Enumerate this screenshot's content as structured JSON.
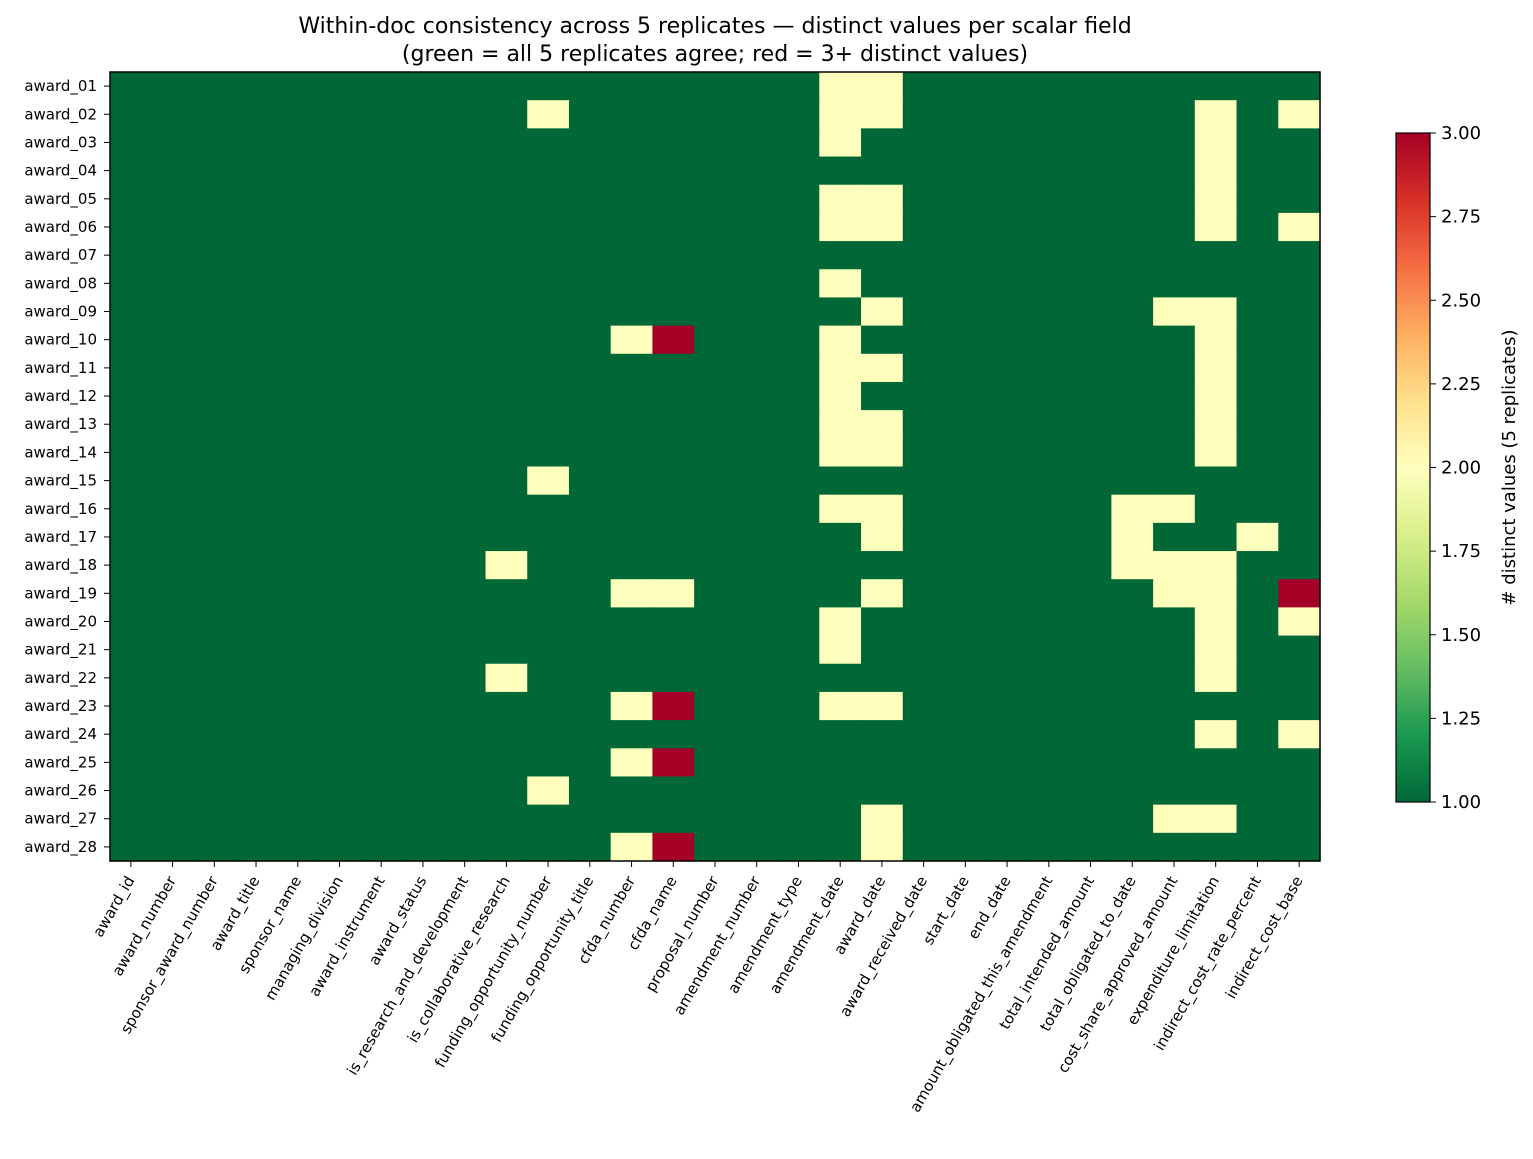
{
  "chart_data": {
    "type": "heatmap",
    "title": "Within-doc consistency across 5 replicates — distinct values per scalar field",
    "subtitle": "(green = all 5 replicates agree; red = 3+ distinct values)",
    "colorbar_label": "# distinct values (5 replicates)",
    "value_range": [
      1.0,
      3.0
    ],
    "colormap": "RdYlGn_r",
    "colorbar_ticks": [
      "1.00",
      "1.25",
      "1.50",
      "1.75",
      "2.00",
      "2.25",
      "2.50",
      "2.75",
      "3.00"
    ],
    "rows": [
      "award_01",
      "award_02",
      "award_03",
      "award_04",
      "award_05",
      "award_06",
      "award_07",
      "award_08",
      "award_09",
      "award_10",
      "award_11",
      "award_12",
      "award_13",
      "award_14",
      "award_15",
      "award_16",
      "award_17",
      "award_18",
      "award_19",
      "award_20",
      "award_21",
      "award_22",
      "award_23",
      "award_24",
      "award_25",
      "award_26",
      "award_27",
      "award_28"
    ],
    "columns": [
      "award_id",
      "award_number",
      "sponsor_award_number",
      "award_title",
      "sponsor_name",
      "managing_division",
      "award_instrument",
      "award_status",
      "is_research_and_development",
      "is_collaborative_research",
      "funding_opportunity_number",
      "funding_opportunity_title",
      "cfda_number",
      "cfda_name",
      "proposal_number",
      "amendment_number",
      "amendment_type",
      "amendment_date",
      "award_date",
      "award_received_date",
      "start_date",
      "end_date",
      "amount_obligated_this_amendment",
      "total_intended_amount",
      "total_obligated_to_date",
      "cost_share_approved_amount",
      "expenditure_limitation",
      "indirect_cost_rate_percent",
      "indirect_cost_base"
    ],
    "values": [
      [
        1,
        1,
        1,
        1,
        1,
        1,
        1,
        1,
        1,
        1,
        1,
        1,
        1,
        1,
        1,
        1,
        1,
        2,
        2,
        1,
        1,
        1,
        1,
        1,
        1,
        1,
        1,
        1,
        1
      ],
      [
        1,
        1,
        1,
        1,
        1,
        1,
        1,
        1,
        1,
        1,
        2,
        1,
        1,
        1,
        1,
        1,
        1,
        2,
        2,
        1,
        1,
        1,
        1,
        1,
        1,
        1,
        2,
        1,
        2
      ],
      [
        1,
        1,
        1,
        1,
        1,
        1,
        1,
        1,
        1,
        1,
        1,
        1,
        1,
        1,
        1,
        1,
        1,
        2,
        1,
        1,
        1,
        1,
        1,
        1,
        1,
        1,
        2,
        1,
        1
      ],
      [
        1,
        1,
        1,
        1,
        1,
        1,
        1,
        1,
        1,
        1,
        1,
        1,
        1,
        1,
        1,
        1,
        1,
        1,
        1,
        1,
        1,
        1,
        1,
        1,
        1,
        1,
        2,
        1,
        1
      ],
      [
        1,
        1,
        1,
        1,
        1,
        1,
        1,
        1,
        1,
        1,
        1,
        1,
        1,
        1,
        1,
        1,
        1,
        2,
        2,
        1,
        1,
        1,
        1,
        1,
        1,
        1,
        2,
        1,
        1
      ],
      [
        1,
        1,
        1,
        1,
        1,
        1,
        1,
        1,
        1,
        1,
        1,
        1,
        1,
        1,
        1,
        1,
        1,
        2,
        2,
        1,
        1,
        1,
        1,
        1,
        1,
        1,
        2,
        1,
        2
      ],
      [
        1,
        1,
        1,
        1,
        1,
        1,
        1,
        1,
        1,
        1,
        1,
        1,
        1,
        1,
        1,
        1,
        1,
        1,
        1,
        1,
        1,
        1,
        1,
        1,
        1,
        1,
        1,
        1,
        1
      ],
      [
        1,
        1,
        1,
        1,
        1,
        1,
        1,
        1,
        1,
        1,
        1,
        1,
        1,
        1,
        1,
        1,
        1,
        2,
        1,
        1,
        1,
        1,
        1,
        1,
        1,
        1,
        1,
        1,
        1
      ],
      [
        1,
        1,
        1,
        1,
        1,
        1,
        1,
        1,
        1,
        1,
        1,
        1,
        1,
        1,
        1,
        1,
        1,
        1,
        2,
        1,
        1,
        1,
        1,
        1,
        1,
        2,
        2,
        1,
        1
      ],
      [
        1,
        1,
        1,
        1,
        1,
        1,
        1,
        1,
        1,
        1,
        1,
        1,
        2,
        3,
        1,
        1,
        1,
        2,
        1,
        1,
        1,
        1,
        1,
        1,
        1,
        1,
        2,
        1,
        1
      ],
      [
        1,
        1,
        1,
        1,
        1,
        1,
        1,
        1,
        1,
        1,
        1,
        1,
        1,
        1,
        1,
        1,
        1,
        2,
        2,
        1,
        1,
        1,
        1,
        1,
        1,
        1,
        2,
        1,
        1
      ],
      [
        1,
        1,
        1,
        1,
        1,
        1,
        1,
        1,
        1,
        1,
        1,
        1,
        1,
        1,
        1,
        1,
        1,
        2,
        1,
        1,
        1,
        1,
        1,
        1,
        1,
        1,
        2,
        1,
        1
      ],
      [
        1,
        1,
        1,
        1,
        1,
        1,
        1,
        1,
        1,
        1,
        1,
        1,
        1,
        1,
        1,
        1,
        1,
        2,
        2,
        1,
        1,
        1,
        1,
        1,
        1,
        1,
        2,
        1,
        1
      ],
      [
        1,
        1,
        1,
        1,
        1,
        1,
        1,
        1,
        1,
        1,
        1,
        1,
        1,
        1,
        1,
        1,
        1,
        2,
        2,
        1,
        1,
        1,
        1,
        1,
        1,
        1,
        2,
        1,
        1
      ],
      [
        1,
        1,
        1,
        1,
        1,
        1,
        1,
        1,
        1,
        1,
        2,
        1,
        1,
        1,
        1,
        1,
        1,
        1,
        1,
        1,
        1,
        1,
        1,
        1,
        1,
        1,
        1,
        1,
        1
      ],
      [
        1,
        1,
        1,
        1,
        1,
        1,
        1,
        1,
        1,
        1,
        1,
        1,
        1,
        1,
        1,
        1,
        1,
        2,
        2,
        1,
        1,
        1,
        1,
        1,
        2,
        2,
        1,
        1,
        1
      ],
      [
        1,
        1,
        1,
        1,
        1,
        1,
        1,
        1,
        1,
        1,
        1,
        1,
        1,
        1,
        1,
        1,
        1,
        1,
        2,
        1,
        1,
        1,
        1,
        1,
        2,
        1,
        1,
        2,
        1
      ],
      [
        1,
        1,
        1,
        1,
        1,
        1,
        1,
        1,
        1,
        2,
        1,
        1,
        1,
        1,
        1,
        1,
        1,
        1,
        1,
        1,
        1,
        1,
        1,
        1,
        2,
        2,
        2,
        1,
        1
      ],
      [
        1,
        1,
        1,
        1,
        1,
        1,
        1,
        1,
        1,
        1,
        1,
        1,
        2,
        2,
        1,
        1,
        1,
        1,
        2,
        1,
        1,
        1,
        1,
        1,
        1,
        2,
        2,
        1,
        3
      ],
      [
        1,
        1,
        1,
        1,
        1,
        1,
        1,
        1,
        1,
        1,
        1,
        1,
        1,
        1,
        1,
        1,
        1,
        2,
        1,
        1,
        1,
        1,
        1,
        1,
        1,
        1,
        2,
        1,
        2
      ],
      [
        1,
        1,
        1,
        1,
        1,
        1,
        1,
        1,
        1,
        1,
        1,
        1,
        1,
        1,
        1,
        1,
        1,
        2,
        1,
        1,
        1,
        1,
        1,
        1,
        1,
        1,
        2,
        1,
        1
      ],
      [
        1,
        1,
        1,
        1,
        1,
        1,
        1,
        1,
        1,
        2,
        1,
        1,
        1,
        1,
        1,
        1,
        1,
        1,
        1,
        1,
        1,
        1,
        1,
        1,
        1,
        1,
        2,
        1,
        1
      ],
      [
        1,
        1,
        1,
        1,
        1,
        1,
        1,
        1,
        1,
        1,
        1,
        1,
        2,
        3,
        1,
        1,
        1,
        2,
        2,
        1,
        1,
        1,
        1,
        1,
        1,
        1,
        1,
        1,
        1
      ],
      [
        1,
        1,
        1,
        1,
        1,
        1,
        1,
        1,
        1,
        1,
        1,
        1,
        1,
        1,
        1,
        1,
        1,
        1,
        1,
        1,
        1,
        1,
        1,
        1,
        1,
        1,
        2,
        1,
        2
      ],
      [
        1,
        1,
        1,
        1,
        1,
        1,
        1,
        1,
        1,
        1,
        1,
        1,
        2,
        3,
        1,
        1,
        1,
        1,
        1,
        1,
        1,
        1,
        1,
        1,
        1,
        1,
        1,
        1,
        1
      ],
      [
        1,
        1,
        1,
        1,
        1,
        1,
        1,
        1,
        1,
        1,
        2,
        1,
        1,
        1,
        1,
        1,
        1,
        1,
        1,
        1,
        1,
        1,
        1,
        1,
        1,
        1,
        1,
        1,
        1
      ],
      [
        1,
        1,
        1,
        1,
        1,
        1,
        1,
        1,
        1,
        1,
        1,
        1,
        1,
        1,
        1,
        1,
        1,
        1,
        2,
        1,
        1,
        1,
        1,
        1,
        1,
        2,
        2,
        1,
        1
      ],
      [
        1,
        1,
        1,
        1,
        1,
        1,
        1,
        1,
        1,
        1,
        1,
        1,
        2,
        3,
        1,
        1,
        1,
        1,
        2,
        1,
        1,
        1,
        1,
        1,
        1,
        1,
        1,
        1,
        1
      ]
    ],
    "colors": {
      "low": "#006837",
      "mid": "#FEFEBD",
      "high": "#A50026"
    }
  }
}
